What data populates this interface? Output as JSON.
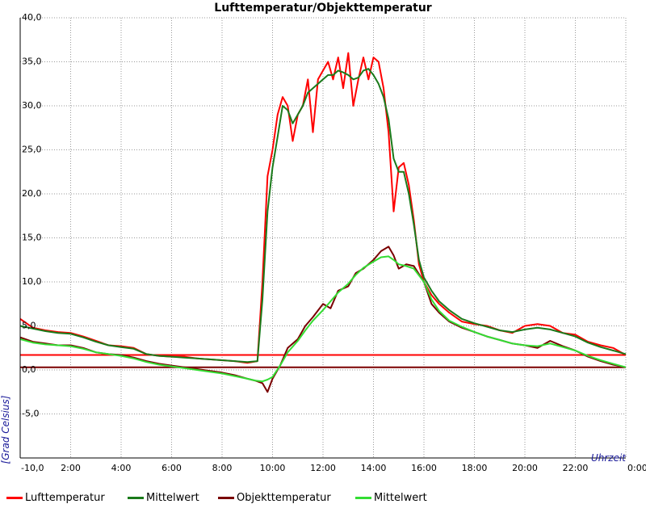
{
  "chart_data": {
    "type": "line",
    "title": "Lufttemperatur/Objekttemperatur",
    "xlabel": "Uhrzeit",
    "ylabel": "[Grad Celsius]",
    "xlim": [
      0,
      24
    ],
    "ylim": [
      -10,
      40
    ],
    "x_tick_labels": [
      {
        "x": 0,
        "label": "-10,0"
      },
      {
        "x": 2,
        "label": "2:00"
      },
      {
        "x": 4,
        "label": "4:00"
      },
      {
        "x": 6,
        "label": "6:00"
      },
      {
        "x": 8,
        "label": "8:00"
      },
      {
        "x": 10,
        "label": "10:00"
      },
      {
        "x": 12,
        "label": "12:00"
      },
      {
        "x": 14,
        "label": "14:00"
      },
      {
        "x": 16,
        "label": "16:00"
      },
      {
        "x": 18,
        "label": "18:00"
      },
      {
        "x": 20,
        "label": "20:00"
      },
      {
        "x": 22,
        "label": "22:00"
      },
      {
        "x": 24,
        "label": "0:00"
      }
    ],
    "y_tick_labels": [
      {
        "y": 40,
        "label": "40,0"
      },
      {
        "y": 35,
        "label": "35,0"
      },
      {
        "y": 30,
        "label": "30,0"
      },
      {
        "y": 25,
        "label": "25,0"
      },
      {
        "y": 20,
        "label": "20,0"
      },
      {
        "y": 15,
        "label": "15,0"
      },
      {
        "y": 10,
        "label": "10,0"
      },
      {
        "y": 5,
        "label": "5,0"
      },
      {
        "y": 0,
        "label": "0,0"
      },
      {
        "y": -5,
        "label": "-5,0"
      }
    ],
    "grid": true,
    "legend_position": "bottom",
    "reference_lines": [
      {
        "y": 1.7,
        "color": "#ff0000"
      },
      {
        "y": 0.3,
        "color": "#7a0000"
      }
    ],
    "series": [
      {
        "name": "Lufttemperatur",
        "color": "#ff0000",
        "x": [
          0,
          0.5,
          1,
          1.5,
          2,
          2.5,
          3,
          3.5,
          4,
          4.5,
          5,
          5.5,
          6,
          6.5,
          7,
          7.5,
          8,
          8.5,
          9,
          9.4,
          9.6,
          9.8,
          10,
          10.2,
          10.4,
          10.6,
          10.8,
          11,
          11.2,
          11.4,
          11.6,
          11.8,
          12,
          12.2,
          12.4,
          12.6,
          12.8,
          13,
          13.2,
          13.4,
          13.6,
          13.8,
          14,
          14.2,
          14.4,
          14.6,
          14.8,
          15,
          15.2,
          15.4,
          15.6,
          15.8,
          16,
          16.3,
          16.6,
          17,
          17.5,
          18,
          18.5,
          19,
          19.5,
          20,
          20.5,
          21,
          21.5,
          22,
          22.5,
          23,
          23.5,
          24
        ],
        "y": [
          5.8,
          4.8,
          4.5,
          4.3,
          4.2,
          3.8,
          3.3,
          2.8,
          2.7,
          2.5,
          1.8,
          1.6,
          1.5,
          1.5,
          1.3,
          1.2,
          1.1,
          1.0,
          0.8,
          1.0,
          10.0,
          22.0,
          25.0,
          29.0,
          31.0,
          30.0,
          26.0,
          29.0,
          30.0,
          33.0,
          27.0,
          33.0,
          34.0,
          35.0,
          33.0,
          35.5,
          32.0,
          36.0,
          30.0,
          33.0,
          35.5,
          33.0,
          35.5,
          35.0,
          32.0,
          27.0,
          18.0,
          23.0,
          23.5,
          21.0,
          17.0,
          12.0,
          10.0,
          8.5,
          7.5,
          6.5,
          5.5,
          5.2,
          5.0,
          4.5,
          4.2,
          5.0,
          5.2,
          5.0,
          4.2,
          4.0,
          3.2,
          2.8,
          2.5,
          1.7
        ]
      },
      {
        "name": "Mittelwert",
        "color": "#1a7a1a",
        "x": [
          0,
          0.5,
          1,
          1.5,
          2,
          2.5,
          3,
          3.5,
          4,
          4.5,
          5,
          5.5,
          6,
          6.5,
          7,
          7.5,
          8,
          8.5,
          9,
          9.4,
          9.6,
          9.8,
          10,
          10.2,
          10.4,
          10.6,
          10.8,
          11,
          11.2,
          11.4,
          11.6,
          11.8,
          12,
          12.2,
          12.4,
          12.6,
          12.8,
          13,
          13.2,
          13.4,
          13.6,
          13.8,
          14,
          14.2,
          14.4,
          14.6,
          14.8,
          15,
          15.2,
          15.4,
          15.6,
          15.8,
          16,
          16.3,
          16.6,
          17,
          17.5,
          18,
          18.5,
          19,
          19.5,
          20,
          20.5,
          21,
          21.5,
          22,
          22.5,
          23,
          23.5,
          24
        ],
        "y": [
          5.0,
          4.7,
          4.4,
          4.2,
          4.1,
          3.7,
          3.2,
          2.8,
          2.6,
          2.4,
          1.8,
          1.6,
          1.5,
          1.4,
          1.3,
          1.2,
          1.1,
          1.0,
          0.9,
          1.0,
          8.0,
          18.0,
          23.0,
          26.5,
          30.0,
          29.5,
          28.0,
          29.0,
          30.0,
          31.5,
          32.0,
          32.5,
          33.0,
          33.5,
          33.5,
          34.0,
          33.8,
          33.5,
          33.0,
          33.2,
          34.0,
          34.2,
          33.5,
          32.5,
          31.0,
          28.5,
          24.0,
          22.5,
          22.5,
          20.0,
          16.5,
          12.5,
          10.5,
          9.0,
          7.8,
          6.8,
          5.8,
          5.3,
          4.9,
          4.5,
          4.3,
          4.6,
          4.8,
          4.6,
          4.2,
          3.8,
          3.1,
          2.6,
          2.2,
          1.8
        ]
      },
      {
        "name": "Objekttemperatur",
        "color": "#7a0000",
        "x": [
          0,
          0.5,
          1,
          1.5,
          2,
          2.5,
          3,
          3.5,
          4,
          4.5,
          5,
          5.5,
          6,
          6.5,
          7,
          7.5,
          8,
          8.5,
          9,
          9.3,
          9.6,
          9.8,
          10,
          10.3,
          10.6,
          11,
          11.3,
          11.6,
          12,
          12.3,
          12.6,
          13,
          13.3,
          13.6,
          14,
          14.3,
          14.6,
          14.8,
          15,
          15.3,
          15.6,
          16,
          16.3,
          16.6,
          17,
          17.5,
          18,
          18.5,
          19,
          19.5,
          20,
          20.5,
          21,
          21.5,
          22,
          22.5,
          23,
          23.5,
          24
        ],
        "y": [
          3.7,
          3.2,
          3.0,
          2.8,
          2.8,
          2.5,
          2.0,
          1.8,
          1.7,
          1.4,
          1.0,
          0.7,
          0.5,
          0.3,
          0.1,
          -0.1,
          -0.3,
          -0.6,
          -1.0,
          -1.2,
          -1.5,
          -2.5,
          -1.0,
          0.5,
          2.5,
          3.5,
          5.0,
          6.0,
          7.5,
          7.0,
          9.0,
          9.5,
          11.0,
          11.5,
          12.5,
          13.5,
          14.0,
          13.0,
          11.5,
          12.0,
          11.8,
          10.0,
          7.5,
          6.5,
          5.5,
          4.8,
          4.3,
          3.8,
          3.4,
          3.0,
          2.8,
          2.5,
          3.3,
          2.7,
          2.2,
          1.5,
          1.0,
          0.6,
          0.3
        ]
      },
      {
        "name": "Mittelwert",
        "color": "#33dd33",
        "x": [
          0,
          0.5,
          1,
          1.5,
          2,
          2.5,
          3,
          3.5,
          4,
          4.5,
          5,
          5.5,
          6,
          6.5,
          7,
          7.5,
          8,
          8.5,
          9,
          9.3,
          9.6,
          9.8,
          10,
          10.3,
          10.6,
          11,
          11.3,
          11.6,
          12,
          12.3,
          12.6,
          13,
          13.3,
          13.6,
          14,
          14.3,
          14.6,
          14.8,
          15,
          15.3,
          15.6,
          16,
          16.3,
          16.6,
          17,
          17.5,
          18,
          18.5,
          19,
          19.5,
          20,
          20.5,
          21,
          21.5,
          22,
          22.5,
          23,
          23.5,
          24
        ],
        "y": [
          3.5,
          3.1,
          2.9,
          2.8,
          2.7,
          2.4,
          2.0,
          1.8,
          1.6,
          1.3,
          0.9,
          0.6,
          0.4,
          0.2,
          0.0,
          -0.2,
          -0.4,
          -0.7,
          -1.0,
          -1.2,
          -1.3,
          -1.1,
          -0.8,
          0.5,
          2.0,
          3.3,
          4.5,
          5.6,
          6.8,
          7.8,
          8.8,
          9.8,
          10.8,
          11.6,
          12.3,
          12.8,
          12.9,
          12.5,
          12.0,
          11.8,
          11.5,
          10.0,
          8.0,
          6.7,
          5.6,
          4.9,
          4.3,
          3.8,
          3.4,
          3.0,
          2.8,
          2.7,
          3.0,
          2.6,
          2.2,
          1.6,
          1.1,
          0.7,
          0.3
        ]
      }
    ]
  }
}
